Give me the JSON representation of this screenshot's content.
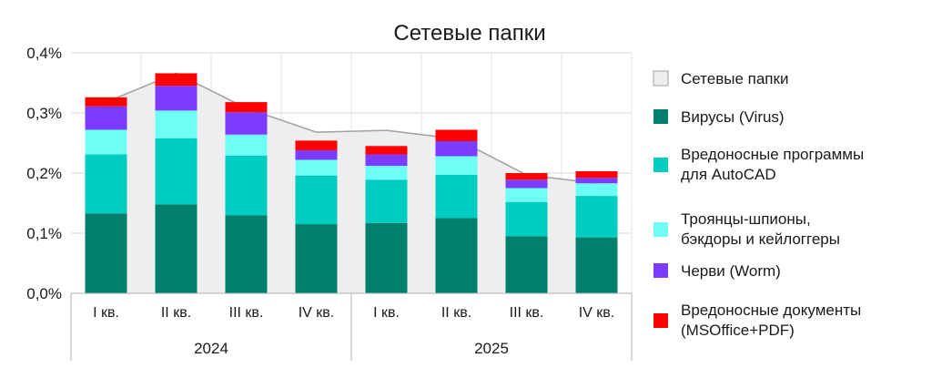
{
  "chart_data": {
    "type": "bar",
    "stacked": true,
    "title": "Сетевые папки",
    "categories": [
      "I кв.",
      "II кв.",
      "III кв.",
      "IV кв.",
      "I кв.",
      "II кв.",
      "III кв.",
      "IV кв."
    ],
    "groups": [
      {
        "label": "2024",
        "start": 0,
        "end": 3
      },
      {
        "label": "2025",
        "start": 4,
        "end": 7
      }
    ],
    "ylim": [
      0,
      0.4
    ],
    "yticks": [
      "0,0%",
      "0,1%",
      "0,2%",
      "0,3%",
      "0,4%"
    ],
    "grid": true,
    "legend_position": "right",
    "area": {
      "name": "Сетевые папки",
      "color": "#eeeeee",
      "line_color": "#a0a0a0",
      "values": [
        0.318,
        0.366,
        0.308,
        0.268,
        0.271,
        0.257,
        0.197,
        0.183
      ]
    },
    "series": [
      {
        "name": "Вирусы (Virus)",
        "color": "#007f6d",
        "values": [
          0.133,
          0.148,
          0.13,
          0.115,
          0.117,
          0.125,
          0.095,
          0.093
        ]
      },
      {
        "name": "Вредоносные программы для AutoCAD",
        "color": "#00ccc2",
        "values": [
          0.098,
          0.11,
          0.099,
          0.081,
          0.072,
          0.072,
          0.057,
          0.069
        ]
      },
      {
        "name": "Троянцы-шпионы, бэкдоры и кейлоггеры",
        "color": "#6dfff6",
        "values": [
          0.041,
          0.046,
          0.035,
          0.026,
          0.023,
          0.031,
          0.023,
          0.021
        ]
      },
      {
        "name": "Черви (Worm)",
        "color": "#7b3cff",
        "values": [
          0.039,
          0.041,
          0.037,
          0.016,
          0.019,
          0.025,
          0.014,
          0.009
        ]
      },
      {
        "name": "Вредоносные документы (MSOffice+PDF)",
        "color": "#ff0000",
        "values": [
          0.015,
          0.021,
          0.017,
          0.016,
          0.014,
          0.019,
          0.011,
          0.011
        ]
      }
    ]
  }
}
